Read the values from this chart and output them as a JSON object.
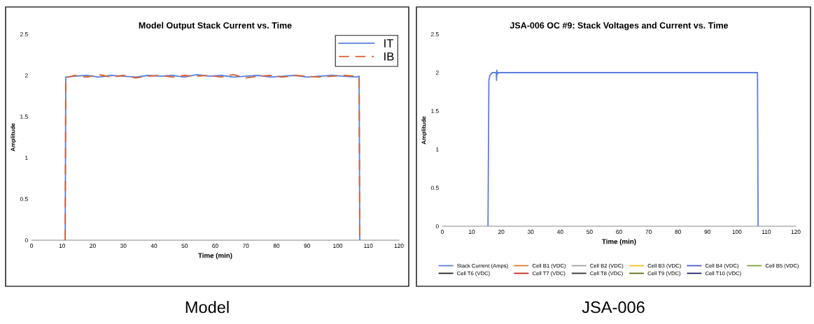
{
  "chart_data": [
    {
      "type": "line",
      "title": "Model Output Stack Current vs. Time",
      "xlabel": "Time (min)",
      "ylabel": "Amplitude",
      "annotations": [
        "Model"
      ],
      "xlim": [
        0,
        120
      ],
      "ylim": [
        0,
        2.5
      ],
      "xticks": [
        0,
        10,
        20,
        30,
        40,
        50,
        60,
        70,
        80,
        90,
        100,
        110,
        120
      ],
      "yticks": [
        0,
        0.5,
        1,
        1.5,
        2,
        2.5
      ],
      "grid": false,
      "legend": "top right",
      "marker": "none",
      "x": [
        11,
        11.2,
        14,
        18,
        22,
        26,
        30,
        34,
        38,
        42,
        46,
        50,
        54,
        58,
        62,
        66,
        70,
        74,
        78,
        82,
        86,
        90,
        94,
        98,
        102,
        106,
        107,
        107.2
      ],
      "series": [
        {
          "name": "IT",
          "color": "#5b7fe0",
          "line_style": "solid",
          "values": [
            0,
            1.98,
            1.99,
            2.0,
            1.98,
            2.0,
            1.99,
            1.98,
            2.0,
            1.99,
            2.0,
            1.98,
            2.01,
            1.99,
            2.0,
            1.98,
            1.99,
            2.0,
            1.98,
            1.99,
            2.0,
            1.98,
            1.99,
            2.0,
            1.99,
            1.98,
            1.99,
            0
          ]
        },
        {
          "name": "IB",
          "color": "#d9622b",
          "line_style": "dashed",
          "values": [
            0,
            1.97,
            2.0,
            1.98,
            2.01,
            1.98,
            2.0,
            1.97,
            1.99,
            2.0,
            1.98,
            2.0,
            1.99,
            2.0,
            1.98,
            2.01,
            1.97,
            1.99,
            2.0,
            1.98,
            2.0,
            1.99,
            1.98,
            1.99,
            2.0,
            1.99,
            1.98,
            0
          ]
        }
      ]
    },
    {
      "type": "line",
      "title": "JSA-006 OC #9: Stack Voltages and Current vs. Time",
      "xlabel": "Time (min)",
      "ylabel": "Amplitude",
      "annotations": [
        "JSA-006"
      ],
      "xlim": [
        0,
        120
      ],
      "ylim": [
        0,
        2.5
      ],
      "xticks": [
        0,
        10,
        20,
        30,
        40,
        50,
        60,
        70,
        80,
        90,
        100,
        110,
        120
      ],
      "yticks": [
        0,
        0.5,
        1,
        1.5,
        2,
        2.5
      ],
      "grid": false,
      "legend": "bottom",
      "marker": "none",
      "x": [
        15.5,
        15.8,
        16.2,
        17,
        18.3,
        18.4,
        18.5,
        18.7,
        19,
        30,
        50,
        70,
        90,
        105,
        107,
        107.2
      ],
      "series": [
        {
          "name": "Stack Current (Amps)",
          "color": "#5b7fe0",
          "line_style": "solid",
          "values": [
            0,
            1.9,
            1.97,
            2.0,
            2.0,
            1.9,
            2.03,
            1.98,
            2.0,
            2.0,
            2.0,
            2.0,
            2.0,
            2.0,
            2.0,
            0
          ]
        },
        {
          "name": "Cell B1 (VDC)",
          "color": "#e07b2b",
          "line_style": "solid",
          "values": [
            null,
            null,
            null,
            null,
            null,
            null,
            null,
            null,
            null,
            null,
            null,
            null,
            null,
            null,
            null,
            null
          ]
        },
        {
          "name": "Cell B2 (VDC)",
          "color": "#a0a0a0",
          "line_style": "solid",
          "values": [
            null,
            null,
            null,
            null,
            null,
            null,
            null,
            null,
            null,
            null,
            null,
            null,
            null,
            null,
            null,
            null
          ]
        },
        {
          "name": "Cell B3 (VDC)",
          "color": "#f0c020",
          "line_style": "solid",
          "values": [
            null,
            null,
            null,
            null,
            null,
            null,
            null,
            null,
            null,
            null,
            null,
            null,
            null,
            null,
            null,
            null
          ]
        },
        {
          "name": "Cell B4 (VDC)",
          "color": "#4a5ad0",
          "line_style": "solid",
          "values": [
            null,
            null,
            null,
            null,
            null,
            null,
            null,
            null,
            null,
            null,
            null,
            null,
            null,
            null,
            null,
            null
          ]
        },
        {
          "name": "Cell B5 (VDC)",
          "color": "#80a040",
          "line_style": "solid",
          "values": [
            null,
            null,
            null,
            null,
            null,
            null,
            null,
            null,
            null,
            null,
            null,
            null,
            null,
            null,
            null,
            null
          ]
        },
        {
          "name": "Cell T6 (VDC)",
          "color": "#202020",
          "line_style": "solid",
          "values": [
            null,
            null,
            null,
            null,
            null,
            null,
            null,
            null,
            null,
            null,
            null,
            null,
            null,
            null,
            null,
            null
          ]
        },
        {
          "name": "Cell T7 (VDC)",
          "color": "#d02020",
          "line_style": "solid",
          "values": [
            null,
            null,
            null,
            null,
            null,
            null,
            null,
            null,
            null,
            null,
            null,
            null,
            null,
            null,
            null,
            null
          ]
        },
        {
          "name": "Cell T8 (VDC)",
          "color": "#303030",
          "line_style": "solid",
          "values": [
            null,
            null,
            null,
            null,
            null,
            null,
            null,
            null,
            null,
            null,
            null,
            null,
            null,
            null,
            null,
            null
          ]
        },
        {
          "name": "Cell T9 (VDC)",
          "color": "#607010",
          "line_style": "solid",
          "values": [
            null,
            null,
            null,
            null,
            null,
            null,
            null,
            null,
            null,
            null,
            null,
            null,
            null,
            null,
            null,
            null
          ]
        },
        {
          "name": "Cell T10 (VDC)",
          "color": "#202070",
          "line_style": "solid",
          "values": [
            null,
            null,
            null,
            null,
            null,
            null,
            null,
            null,
            null,
            null,
            null,
            null,
            null,
            null,
            null,
            null
          ]
        }
      ]
    }
  ]
}
